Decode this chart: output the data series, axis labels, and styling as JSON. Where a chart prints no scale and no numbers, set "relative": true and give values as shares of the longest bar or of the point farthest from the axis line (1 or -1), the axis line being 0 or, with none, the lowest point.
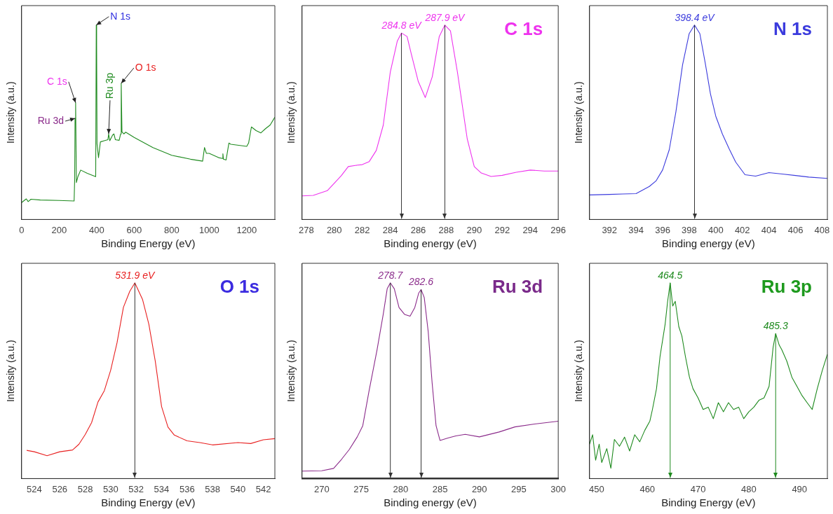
{
  "chart_data": [
    {
      "type": "line",
      "xlabel": "Binding Energy (eV)",
      "ylabel": "Intensity (a.u.)",
      "relative": true,
      "tick_labels": "x",
      "xlim": [
        0,
        1350
      ],
      "xticks": [
        0,
        200,
        400,
        600,
        800,
        1000,
        1200
      ],
      "series": [
        {
          "color": "#1e8a1e",
          "x": [
            0,
            25,
            35,
            50,
            100,
            200,
            280,
            283,
            285,
            288,
            292,
            300,
            315,
            350,
            395,
            398,
            400,
            402,
            410,
            420,
            440,
            460,
            464,
            470,
            485,
            492,
            500,
            520,
            528,
            531,
            535,
            545,
            555,
            600,
            700,
            800,
            900,
            965,
            975,
            985,
            1000,
            1050,
            1070,
            1073,
            1076,
            1090,
            1105,
            1115,
            1200,
            1210,
            1225,
            1250,
            1275,
            1300,
            1325,
            1350
          ],
          "values": [
            0.087,
            0.106,
            0.092,
            0.104,
            0.1,
            0.098,
            0.095,
            0.21,
            0.52,
            0.6,
            0.19,
            0.22,
            0.254,
            0.237,
            0.22,
            1.0,
            0.9,
            0.39,
            0.318,
            0.399,
            0.405,
            0.41,
            0.44,
            0.405,
            0.434,
            0.44,
            0.41,
            0.407,
            0.44,
            0.7,
            0.45,
            0.44,
            0.449,
            0.422,
            0.37,
            0.33,
            0.31,
            0.3,
            0.37,
            0.34,
            0.34,
            0.318,
            0.314,
            0.338,
            0.31,
            0.306,
            0.393,
            0.387,
            0.376,
            0.393,
            0.476,
            0.457,
            0.445,
            0.467,
            0.486,
            0.526
          ]
        }
      ],
      "annotations": [
        {
          "text": "N 1s",
          "x": 398,
          "y": 1.0
        },
        {
          "text": "C 1s",
          "x": 288,
          "y": 0.6
        },
        {
          "text": "Ru 3d",
          "x": 285,
          "y": 0.52
        },
        {
          "text": "Ru 3p",
          "x": 464,
          "y": 0.44
        },
        {
          "text": "O 1s",
          "x": 531,
          "y": 0.7
        }
      ]
    },
    {
      "type": "line",
      "title": "C 1s",
      "xlabel": "Binding energy (eV)",
      "ylabel": "Intensity (a.u.)",
      "relative": true,
      "tick_labels": "x",
      "xlim": [
        277.7,
        296
      ],
      "xticks": [
        278,
        280,
        282,
        284,
        286,
        288,
        290,
        292,
        294,
        296
      ],
      "series": [
        {
          "color": "#ee33ee",
          "x": [
            277.7,
            278.5,
            279.5,
            280.5,
            281,
            281.5,
            282,
            282.5,
            283,
            283.5,
            284,
            284.5,
            284.8,
            285.2,
            285.5,
            286,
            286.5,
            287,
            287.5,
            287.9,
            288.3,
            288.8,
            289.5,
            290,
            290.5,
            291.2,
            292,
            293,
            294,
            295,
            296
          ],
          "values": [
            0.121,
            0.124,
            0.148,
            0.225,
            0.272,
            0.278,
            0.282,
            0.298,
            0.355,
            0.485,
            0.757,
            0.917,
            0.959,
            0.941,
            0.852,
            0.71,
            0.627,
            0.734,
            0.941,
            1.0,
            0.97,
            0.757,
            0.414,
            0.272,
            0.239,
            0.221,
            0.227,
            0.243,
            0.254,
            0.249,
            0.249
          ]
        }
      ],
      "ref_lines": [
        {
          "axis": "x",
          "value": 284.8,
          "label": "284.8 eV",
          "color": "#333333"
        },
        {
          "axis": "x",
          "value": 287.9,
          "label": "287.9 eV",
          "color": "#333333"
        }
      ]
    },
    {
      "type": "line",
      "title": "N 1s",
      "xlabel": "Binding energy (eV)",
      "ylabel": "Intensity (a.u.)",
      "relative": true,
      "tick_labels": "x",
      "xlim": [
        390.5,
        408.4
      ],
      "xticks": [
        392,
        394,
        396,
        398,
        400,
        402,
        404,
        406,
        408
      ],
      "series": [
        {
          "color": "#3b3bdd",
          "x": [
            390.5,
            392,
            393,
            394,
            395,
            395.5,
            396,
            396.5,
            397,
            397.5,
            398,
            398.4,
            398.8,
            399.2,
            399.6,
            400,
            400.5,
            401,
            401.5,
            402.2,
            403,
            404,
            405,
            406,
            407,
            408.4
          ],
          "values": [
            0.126,
            0.129,
            0.131,
            0.133,
            0.17,
            0.198,
            0.255,
            0.359,
            0.554,
            0.795,
            0.956,
            1.0,
            0.956,
            0.807,
            0.646,
            0.531,
            0.439,
            0.364,
            0.295,
            0.23,
            0.223,
            0.241,
            0.234,
            0.226,
            0.218,
            0.211
          ]
        }
      ],
      "ref_lines": [
        {
          "axis": "x",
          "value": 398.4,
          "label": "398.4 eV",
          "color": "#333333"
        }
      ]
    },
    {
      "type": "line",
      "title": "O 1s",
      "xlabel": "Binding Energy (eV)",
      "ylabel": "Intensity (a.u.)",
      "relative": true,
      "tick_labels": "x",
      "xlim": [
        523,
        542.9
      ],
      "xticks": [
        524,
        526,
        528,
        530,
        532,
        534,
        536,
        538,
        540,
        542
      ],
      "series": [
        {
          "color": "#e82020",
          "x": [
            523.4,
            524,
            525,
            526,
            527,
            527.5,
            528,
            528.5,
            529,
            529.5,
            530,
            530.5,
            531,
            531.5,
            531.9,
            532.5,
            533,
            533.5,
            534,
            534.5,
            535,
            536,
            537,
            538,
            540,
            541,
            542,
            542.9
          ],
          "values": [
            0.144,
            0.137,
            0.117,
            0.137,
            0.146,
            0.175,
            0.225,
            0.286,
            0.391,
            0.449,
            0.554,
            0.694,
            0.875,
            0.957,
            1.0,
            0.916,
            0.788,
            0.601,
            0.368,
            0.263,
            0.222,
            0.193,
            0.184,
            0.172,
            0.184,
            0.179,
            0.198,
            0.204
          ]
        }
      ],
      "ref_lines": [
        {
          "axis": "x",
          "value": 531.9,
          "label": "531.9 eV",
          "color": "#333333"
        }
      ]
    },
    {
      "type": "line",
      "title": "Ru 3d",
      "xlabel": "Binding energy (eV)",
      "ylabel": "Intensity (a.u.)",
      "relative": true,
      "tick_labels": "x",
      "xlim": [
        267.5,
        300
      ],
      "xticks": [
        270,
        275,
        280,
        285,
        290,
        295,
        300
      ],
      "series": [
        {
          "color": "#8a2a8a",
          "x": [
            267.5,
            270,
            271.5,
            272.5,
            273.5,
            274.5,
            275.2,
            276,
            277,
            277.8,
            278.3,
            278.7,
            279.2,
            279.8,
            280.5,
            281.2,
            281.8,
            282.3,
            282.6,
            283,
            283.5,
            284,
            284.5,
            285,
            286,
            287,
            288.2,
            290,
            292.5,
            294.5,
            297,
            300
          ],
          "values": [
            0.038,
            0.04,
            0.052,
            0.098,
            0.149,
            0.213,
            0.27,
            0.448,
            0.655,
            0.84,
            0.97,
            1.0,
            0.97,
            0.874,
            0.839,
            0.83,
            0.874,
            0.948,
            0.966,
            0.925,
            0.752,
            0.489,
            0.27,
            0.195,
            0.207,
            0.218,
            0.226,
            0.213,
            0.238,
            0.264,
            0.279,
            0.293
          ]
        }
      ],
      "ref_lines": [
        {
          "axis": "x",
          "value": 278.7,
          "label": "278.7",
          "color": "#333333"
        },
        {
          "axis": "x",
          "value": 282.6,
          "label": "282.6",
          "color": "#333333"
        }
      ]
    },
    {
      "type": "line",
      "title": "Ru 3p",
      "xlabel": "Binding Energy (eV)",
      "ylabel": "Intensity (a.u.)",
      "relative": true,
      "tick_labels": "x",
      "xlim": [
        448.6,
        495.5
      ],
      "xticks": [
        450,
        460,
        470,
        480,
        490
      ],
      "series": [
        {
          "color": "#1e8a1e",
          "x": [
            448.6,
            449.2,
            449.8,
            450.5,
            451,
            452,
            452.8,
            453.5,
            454.5,
            455.5,
            456.5,
            457.5,
            458.5,
            459.5,
            460.5,
            461,
            461.8,
            462.5,
            463.5,
            464,
            464.5,
            465,
            465.5,
            466.2,
            466.8,
            467.5,
            468.3,
            469,
            470,
            471,
            472,
            473,
            474,
            475,
            476,
            477,
            478,
            479,
            480,
            481,
            482,
            483,
            484,
            484.8,
            485.3,
            486,
            486.5,
            487.5,
            488.5,
            489.5,
            490.5,
            491.5,
            492.5,
            493.5,
            494.5,
            495.5
          ],
          "values": [
            0.176,
            0.224,
            0.094,
            0.176,
            0.082,
            0.153,
            0.053,
            0.2,
            0.165,
            0.212,
            0.141,
            0.224,
            0.188,
            0.247,
            0.294,
            0.353,
            0.459,
            0.624,
            0.788,
            0.906,
            1.0,
            0.882,
            0.906,
            0.776,
            0.729,
            0.624,
            0.518,
            0.459,
            0.412,
            0.353,
            0.365,
            0.306,
            0.388,
            0.341,
            0.388,
            0.353,
            0.365,
            0.306,
            0.341,
            0.365,
            0.4,
            0.412,
            0.471,
            0.671,
            0.741,
            0.682,
            0.659,
            0.6,
            0.518,
            0.471,
            0.424,
            0.388,
            0.353,
            0.459,
            0.553,
            0.635
          ]
        }
      ],
      "ref_lines": [
        {
          "axis": "x",
          "value": 464.5,
          "label": "464.5",
          "color": "#1e8a1e"
        },
        {
          "axis": "x",
          "value": 485.3,
          "label": "485.3",
          "color": "#1e8a1e"
        }
      ]
    }
  ]
}
